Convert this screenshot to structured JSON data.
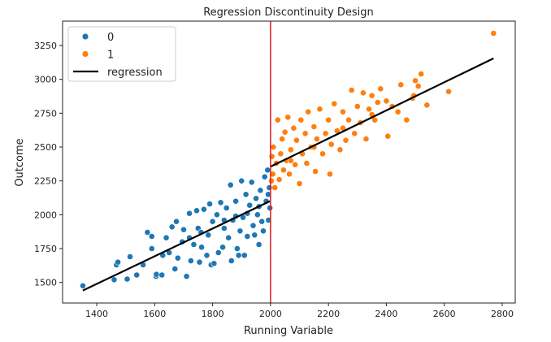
{
  "chart_data": {
    "type": "scatter",
    "title": "Regression Discontinuity Design",
    "xlabel": "Running Variable",
    "ylabel": "Outcome",
    "xlim": [
      1282,
      2845
    ],
    "ylim": [
      1348,
      3430
    ],
    "xticks": [
      1400,
      1600,
      1800,
      2000,
      2200,
      2400,
      2600,
      2800
    ],
    "yticks": [
      1500,
      1750,
      2000,
      2250,
      2500,
      2750,
      3000,
      3250
    ],
    "cutoff": 2000,
    "cutoff_color": "#e41a1c",
    "legend": {
      "placement": "top-left",
      "entries": [
        "0",
        "1",
        "regression"
      ]
    },
    "series": [
      {
        "name": "0",
        "color": "#1f77b4",
        "points": [
          [
            1352,
            1475
          ],
          [
            1460,
            1520
          ],
          [
            1468,
            1630
          ],
          [
            1473,
            1650
          ],
          [
            1505,
            1525
          ],
          [
            1515,
            1690
          ],
          [
            1538,
            1555
          ],
          [
            1560,
            1630
          ],
          [
            1575,
            1870
          ],
          [
            1590,
            1840
          ],
          [
            1590,
            1750
          ],
          [
            1605,
            1545
          ],
          [
            1606,
            1560
          ],
          [
            1625,
            1555
          ],
          [
            1628,
            1700
          ],
          [
            1640,
            1830
          ],
          [
            1650,
            1720
          ],
          [
            1660,
            1910
          ],
          [
            1670,
            1600
          ],
          [
            1675,
            1950
          ],
          [
            1680,
            1680
          ],
          [
            1695,
            1800
          ],
          [
            1700,
            1890
          ],
          [
            1710,
            1545
          ],
          [
            1720,
            2010
          ],
          [
            1725,
            1660
          ],
          [
            1735,
            1780
          ],
          [
            1745,
            2030
          ],
          [
            1750,
            1900
          ],
          [
            1755,
            1650
          ],
          [
            1762,
            1760
          ],
          [
            1770,
            2040
          ],
          [
            1780,
            1700
          ],
          [
            1785,
            1850
          ],
          [
            1790,
            2080
          ],
          [
            1795,
            1630
          ],
          [
            1800,
            1950
          ],
          [
            1805,
            1640
          ],
          [
            1815,
            2000
          ],
          [
            1820,
            1720
          ],
          [
            1828,
            2090
          ],
          [
            1835,
            1760
          ],
          [
            1840,
            1900
          ],
          [
            1848,
            2050
          ],
          [
            1855,
            1830
          ],
          [
            1862,
            2220
          ],
          [
            1865,
            1660
          ],
          [
            1870,
            1960
          ],
          [
            1880,
            2100
          ],
          [
            1885,
            1750
          ],
          [
            1890,
            1700
          ],
          [
            1895,
            1880
          ],
          [
            1900,
            2250
          ],
          [
            1905,
            1980
          ],
          [
            1910,
            1700
          ],
          [
            1915,
            2150
          ],
          [
            1920,
            1840
          ],
          [
            1928,
            2070
          ],
          [
            1935,
            2240
          ],
          [
            1940,
            1920
          ],
          [
            1945,
            1850
          ],
          [
            1950,
            2120
          ],
          [
            1955,
            2000
          ],
          [
            1960,
            1780
          ],
          [
            1965,
            2180
          ],
          [
            1970,
            1950
          ],
          [
            1975,
            1880
          ],
          [
            1980,
            2280
          ],
          [
            1985,
            2100
          ],
          [
            1990,
            2330
          ],
          [
            1993,
            1960
          ],
          [
            1996,
            2200
          ],
          [
            1998,
            2050
          ],
          [
            1992,
            2150
          ],
          [
            1960,
            2060
          ],
          [
            1920,
            2010
          ],
          [
            1880,
            1990
          ],
          [
            1840,
            1960
          ],
          [
            1760,
            1870
          ],
          [
            1720,
            1830
          ]
        ]
      },
      {
        "name": "1",
        "color": "#ff7f0e",
        "points": [
          [
            2003,
            2250
          ],
          [
            2005,
            2430
          ],
          [
            2008,
            2300
          ],
          [
            2010,
            2500
          ],
          [
            2015,
            2200
          ],
          [
            2020,
            2380
          ],
          [
            2025,
            2700
          ],
          [
            2030,
            2260
          ],
          [
            2035,
            2450
          ],
          [
            2040,
            2560
          ],
          [
            2045,
            2330
          ],
          [
            2050,
            2610
          ],
          [
            2055,
            2400
          ],
          [
            2060,
            2720
          ],
          [
            2065,
            2300
          ],
          [
            2070,
            2480
          ],
          [
            2080,
            2640
          ],
          [
            2085,
            2370
          ],
          [
            2090,
            2550
          ],
          [
            2100,
            2230
          ],
          [
            2105,
            2700
          ],
          [
            2110,
            2450
          ],
          [
            2120,
            2600
          ],
          [
            2125,
            2380
          ],
          [
            2130,
            2760
          ],
          [
            2140,
            2500
          ],
          [
            2150,
            2650
          ],
          [
            2155,
            2320
          ],
          [
            2160,
            2560
          ],
          [
            2170,
            2780
          ],
          [
            2180,
            2450
          ],
          [
            2190,
            2600
          ],
          [
            2200,
            2700
          ],
          [
            2205,
            2300
          ],
          [
            2210,
            2520
          ],
          [
            2220,
            2820
          ],
          [
            2230,
            2620
          ],
          [
            2240,
            2480
          ],
          [
            2250,
            2760
          ],
          [
            2260,
            2550
          ],
          [
            2270,
            2700
          ],
          [
            2280,
            2920
          ],
          [
            2290,
            2600
          ],
          [
            2300,
            2800
          ],
          [
            2310,
            2680
          ],
          [
            2320,
            2900
          ],
          [
            2330,
            2560
          ],
          [
            2340,
            2780
          ],
          [
            2350,
            2880
          ],
          [
            2360,
            2700
          ],
          [
            2370,
            2830
          ],
          [
            2380,
            2930
          ],
          [
            2400,
            2840
          ],
          [
            2405,
            2580
          ],
          [
            2420,
            2800
          ],
          [
            2440,
            2760
          ],
          [
            2450,
            2960
          ],
          [
            2470,
            2700
          ],
          [
            2490,
            2860
          ],
          [
            2495,
            2880
          ],
          [
            2500,
            2990
          ],
          [
            2510,
            2950
          ],
          [
            2520,
            3040
          ],
          [
            2540,
            2810
          ],
          [
            2615,
            2910
          ],
          [
            2770,
            3340
          ],
          [
            2070,
            2400
          ],
          [
            2150,
            2500
          ],
          [
            2250,
            2640
          ],
          [
            2350,
            2740
          ]
        ]
      }
    ],
    "regression_lines": [
      {
        "x": [
          1352,
          1998
        ],
        "y": [
          1440,
          2100
        ]
      },
      {
        "x": [
          2000,
          2770
        ],
        "y": [
          2355,
          3155
        ]
      }
    ],
    "regression_color": "#000000"
  }
}
